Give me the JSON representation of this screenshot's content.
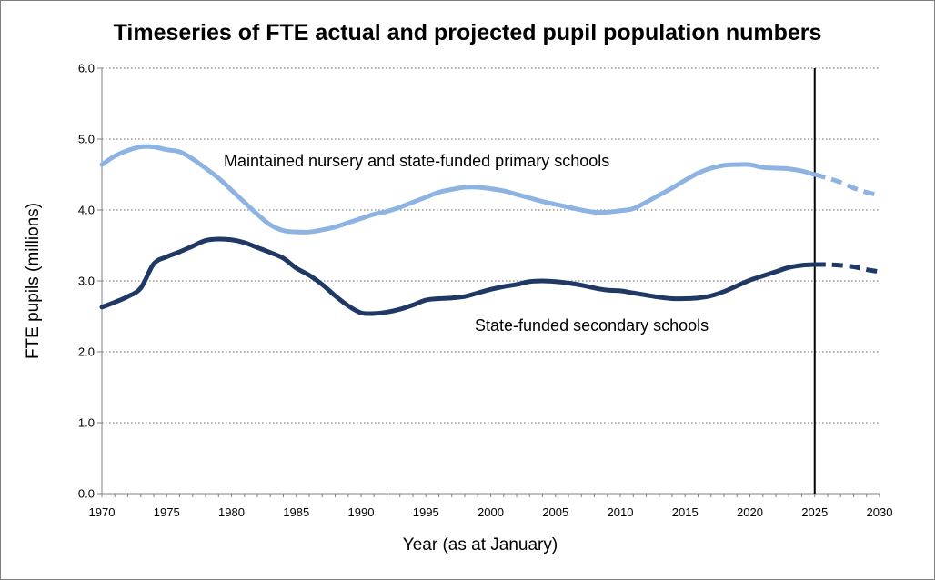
{
  "chart_data": {
    "type": "line",
    "title": "Timeseries of FTE actual and projected pupil population numbers",
    "xlabel": "Year (as at January)",
    "ylabel": "FTE pupils (millions)",
    "xlim": [
      1970,
      2030
    ],
    "ylim": [
      0,
      6
    ],
    "x_ticks": [
      "1970",
      "1975",
      "1980",
      "1985",
      "1990",
      "1995",
      "2000",
      "2005",
      "2010",
      "2015",
      "2020",
      "2025",
      "2030"
    ],
    "y_ticks": [
      "0.0",
      "1.0",
      "2.0",
      "3.0",
      "4.0",
      "5.0",
      "6.0"
    ],
    "grid": "horizontal dotted",
    "projection_start": 2025,
    "colors": {
      "primary": "#8db3e2",
      "secondary": "#1f3864",
      "divider": "#000000",
      "grid": "#808080"
    },
    "series": [
      {
        "name": "Maintained nursery and state-funded primary schools",
        "values": [
          [
            1970,
            4.64
          ],
          [
            1971,
            4.76
          ],
          [
            1972,
            4.84
          ],
          [
            1973,
            4.89
          ],
          [
            1974,
            4.89
          ],
          [
            1975,
            4.85
          ],
          [
            1976,
            4.82
          ],
          [
            1977,
            4.72
          ],
          [
            1978,
            4.59
          ],
          [
            1979,
            4.45
          ],
          [
            1980,
            4.28
          ],
          [
            1981,
            4.11
          ],
          [
            1982,
            3.94
          ],
          [
            1983,
            3.79
          ],
          [
            1984,
            3.71
          ],
          [
            1985,
            3.69
          ],
          [
            1986,
            3.69
          ],
          [
            1987,
            3.72
          ],
          [
            1988,
            3.76
          ],
          [
            1989,
            3.82
          ],
          [
            1990,
            3.88
          ],
          [
            1991,
            3.94
          ],
          [
            1992,
            3.98
          ],
          [
            1993,
            4.04
          ],
          [
            1994,
            4.11
          ],
          [
            1995,
            4.18
          ],
          [
            1996,
            4.25
          ],
          [
            1997,
            4.29
          ],
          [
            1998,
            4.32
          ],
          [
            1999,
            4.32
          ],
          [
            2000,
            4.3
          ],
          [
            2001,
            4.27
          ],
          [
            2002,
            4.22
          ],
          [
            2003,
            4.17
          ],
          [
            2004,
            4.12
          ],
          [
            2005,
            4.08
          ],
          [
            2006,
            4.04
          ],
          [
            2007,
            4.0
          ],
          [
            2008,
            3.97
          ],
          [
            2009,
            3.97
          ],
          [
            2010,
            3.99
          ],
          [
            2011,
            4.02
          ],
          [
            2012,
            4.11
          ],
          [
            2013,
            4.21
          ],
          [
            2014,
            4.31
          ],
          [
            2015,
            4.42
          ],
          [
            2016,
            4.52
          ],
          [
            2017,
            4.59
          ],
          [
            2018,
            4.63
          ],
          [
            2019,
            4.64
          ],
          [
            2020,
            4.64
          ],
          [
            2021,
            4.6
          ],
          [
            2022,
            4.59
          ],
          [
            2023,
            4.58
          ],
          [
            2024,
            4.55
          ],
          [
            2025,
            4.5
          ],
          [
            2026,
            4.45
          ],
          [
            2027,
            4.39
          ],
          [
            2028,
            4.31
          ],
          [
            2029,
            4.25
          ],
          [
            2030,
            4.21
          ]
        ]
      },
      {
        "name": "State-funded secondary schools",
        "values": [
          [
            1970,
            2.63
          ],
          [
            1971,
            2.7
          ],
          [
            1972,
            2.78
          ],
          [
            1973,
            2.9
          ],
          [
            1974,
            3.24
          ],
          [
            1975,
            3.34
          ],
          [
            1976,
            3.41
          ],
          [
            1977,
            3.49
          ],
          [
            1978,
            3.57
          ],
          [
            1979,
            3.59
          ],
          [
            1980,
            3.58
          ],
          [
            1981,
            3.54
          ],
          [
            1982,
            3.47
          ],
          [
            1983,
            3.4
          ],
          [
            1984,
            3.32
          ],
          [
            1985,
            3.18
          ],
          [
            1986,
            3.08
          ],
          [
            1987,
            2.95
          ],
          [
            1988,
            2.79
          ],
          [
            1989,
            2.65
          ],
          [
            1990,
            2.55
          ],
          [
            1991,
            2.54
          ],
          [
            1992,
            2.56
          ],
          [
            1993,
            2.6
          ],
          [
            1994,
            2.66
          ],
          [
            1995,
            2.73
          ],
          [
            1996,
            2.75
          ],
          [
            1997,
            2.76
          ],
          [
            1998,
            2.78
          ],
          [
            1999,
            2.83
          ],
          [
            2000,
            2.88
          ],
          [
            2001,
            2.92
          ],
          [
            2002,
            2.95
          ],
          [
            2003,
            2.99
          ],
          [
            2004,
            3.0
          ],
          [
            2005,
            2.99
          ],
          [
            2006,
            2.97
          ],
          [
            2007,
            2.94
          ],
          [
            2008,
            2.9
          ],
          [
            2009,
            2.87
          ],
          [
            2010,
            2.86
          ],
          [
            2011,
            2.83
          ],
          [
            2012,
            2.8
          ],
          [
            2013,
            2.77
          ],
          [
            2014,
            2.75
          ],
          [
            2015,
            2.75
          ],
          [
            2016,
            2.76
          ],
          [
            2017,
            2.79
          ],
          [
            2018,
            2.85
          ],
          [
            2019,
            2.93
          ],
          [
            2020,
            3.01
          ],
          [
            2021,
            3.07
          ],
          [
            2022,
            3.13
          ],
          [
            2023,
            3.19
          ],
          [
            2024,
            3.22
          ],
          [
            2025,
            3.23
          ],
          [
            2026,
            3.23
          ],
          [
            2027,
            3.22
          ],
          [
            2028,
            3.2
          ],
          [
            2029,
            3.16
          ],
          [
            2030,
            3.13
          ]
        ]
      }
    ]
  }
}
